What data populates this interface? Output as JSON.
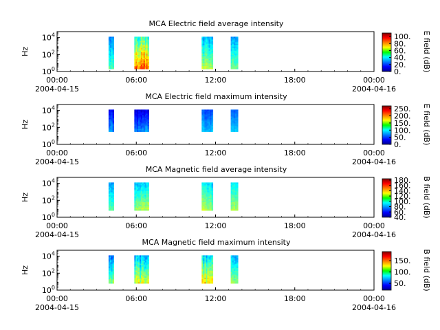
{
  "chart_data": [
    {
      "type": "heatmap",
      "title": "MCA  Electric field average intensity",
      "ylabel": "Hz",
      "y_tick_labels": [
        {
          "base": "10",
          "exp": "0"
        },
        {
          "base": "10",
          "exp": "2"
        },
        {
          "base": "10",
          "exp": "4"
        }
      ],
      "y_scale": "log",
      "ylim_exp": [
        0,
        4.7
      ],
      "x_tick_labels": [
        "00:00",
        "06:00",
        "12:00",
        "18:00",
        "00:00"
      ],
      "x_date_labels": [
        "2004-04-15",
        "2004-04-16"
      ],
      "xlim_hours": [
        0,
        24
      ],
      "colorbar": {
        "label": "E field (dB)",
        "range": [
          0,
          110
        ],
        "ticks": [
          {
            "v": 0,
            "label": "0."
          },
          {
            "v": 20,
            "label": "20."
          },
          {
            "v": 40,
            "label": "40."
          },
          {
            "v": 60,
            "label": "60."
          },
          {
            "v": 80,
            "label": "80."
          },
          {
            "v": 100,
            "label": "100."
          }
        ]
      },
      "bursts": [
        {
          "start_hours": 3.9,
          "end_hours": 4.3,
          "freq_exp": [
            0.3,
            4.1
          ],
          "intensity_db": [
            20,
            60
          ]
        },
        {
          "start_hours": 5.85,
          "end_hours": 6.95,
          "freq_exp": [
            0.3,
            4.1
          ],
          "intensity_db": [
            30,
            100
          ]
        },
        {
          "start_hours": 10.95,
          "end_hours": 11.8,
          "freq_exp": [
            0.3,
            4.1
          ],
          "intensity_db": [
            20,
            70
          ]
        },
        {
          "start_hours": 13.15,
          "end_hours": 13.7,
          "freq_exp": [
            0.3,
            4.1
          ],
          "intensity_db": [
            20,
            60
          ]
        }
      ]
    },
    {
      "type": "heatmap",
      "title": "MCA  Electric field maximum intensity",
      "ylabel": "Hz",
      "y_tick_labels": [
        {
          "base": "10",
          "exp": "0"
        },
        {
          "base": "10",
          "exp": "2"
        },
        {
          "base": "10",
          "exp": "4"
        }
      ],
      "y_scale": "log",
      "ylim_exp": [
        0,
        4.7
      ],
      "x_tick_labels": [
        "00:00",
        "06:00",
        "12:00",
        "18:00",
        "00:00"
      ],
      "x_date_labels": [
        "2004-04-15",
        "2004-04-16"
      ],
      "xlim_hours": [
        0,
        24
      ],
      "colorbar": {
        "label": "E field (dB)",
        "range": [
          0,
          270
        ],
        "ticks": [
          {
            "v": 0,
            "label": "0."
          },
          {
            "v": 50,
            "label": "50."
          },
          {
            "v": 100,
            "label": "100."
          },
          {
            "v": 150,
            "label": "150."
          },
          {
            "v": 200,
            "label": "200."
          },
          {
            "v": 250,
            "label": "250."
          }
        ]
      },
      "bursts": [
        {
          "start_hours": 3.9,
          "end_hours": 4.3,
          "freq_exp": [
            1.5,
            4.1
          ],
          "intensity_db": [
            10,
            90
          ]
        },
        {
          "start_hours": 5.85,
          "end_hours": 6.95,
          "freq_exp": [
            1.5,
            4.1
          ],
          "intensity_db": [
            10,
            90
          ]
        },
        {
          "start_hours": 10.95,
          "end_hours": 11.8,
          "freq_exp": [
            1.5,
            4.1
          ],
          "intensity_db": [
            40,
            100
          ]
        },
        {
          "start_hours": 13.15,
          "end_hours": 13.7,
          "freq_exp": [
            1.5,
            4.1
          ],
          "intensity_db": [
            50,
            100
          ]
        }
      ]
    },
    {
      "type": "heatmap",
      "title": "MCA  Magnetic field average intensity",
      "ylabel": "Hz",
      "y_tick_labels": [
        {
          "base": "10",
          "exp": "0"
        },
        {
          "base": "10",
          "exp": "2"
        },
        {
          "base": "10",
          "exp": "4"
        }
      ],
      "y_scale": "log",
      "ylim_exp": [
        0,
        4.7
      ],
      "x_tick_labels": [
        "00:00",
        "06:00",
        "12:00",
        "18:00",
        "00:00"
      ],
      "x_date_labels": [
        "2004-04-15",
        "2004-04-16"
      ],
      "xlim_hours": [
        0,
        24
      ],
      "colorbar": {
        "label": "B field (dB)",
        "range": [
          40,
          185
        ],
        "ticks": [
          {
            "v": 40,
            "label": "40."
          },
          {
            "v": 60,
            "label": "60."
          },
          {
            "v": 80,
            "label": "80."
          },
          {
            "v": 100,
            "label": "100."
          },
          {
            "v": 120,
            "label": "120."
          },
          {
            "v": 140,
            "label": "140."
          },
          {
            "v": 160,
            "label": "160."
          },
          {
            "v": 180,
            "label": "180."
          }
        ]
      },
      "bursts": [
        {
          "start_hours": 3.9,
          "end_hours": 4.3,
          "freq_exp": [
            0.8,
            4.1
          ],
          "intensity_db": [
            70,
            120
          ]
        },
        {
          "start_hours": 5.85,
          "end_hours": 6.95,
          "freq_exp": [
            0.8,
            4.1
          ],
          "intensity_db": [
            70,
            130
          ]
        },
        {
          "start_hours": 10.95,
          "end_hours": 11.8,
          "freq_exp": [
            0.8,
            4.1
          ],
          "intensity_db": [
            80,
            130
          ]
        },
        {
          "start_hours": 13.15,
          "end_hours": 13.7,
          "freq_exp": [
            0.8,
            4.1
          ],
          "intensity_db": [
            80,
            125
          ]
        }
      ]
    },
    {
      "type": "heatmap",
      "title": "MCA  Magnetic field maximum intensity",
      "ylabel": "Hz",
      "y_tick_labels": [
        {
          "base": "10",
          "exp": "0"
        },
        {
          "base": "10",
          "exp": "2"
        },
        {
          "base": "10",
          "exp": "4"
        }
      ],
      "y_scale": "log",
      "ylim_exp": [
        0,
        4.7
      ],
      "x_tick_labels": [
        "00:00",
        "06:00",
        "12:00",
        "18:00",
        "00:00"
      ],
      "x_date_labels": [
        "2004-04-15",
        "2004-04-16"
      ],
      "xlim_hours": [
        0,
        24
      ],
      "colorbar": {
        "label": "B field (dB)",
        "range": [
          20,
          190
        ],
        "ticks": [
          {
            "v": 50,
            "label": "50."
          },
          {
            "v": 100,
            "label": "100."
          },
          {
            "v": 150,
            "label": "150."
          }
        ]
      },
      "bursts": [
        {
          "start_hours": 3.9,
          "end_hours": 4.3,
          "freq_exp": [
            0.8,
            4.1
          ],
          "intensity_db": [
            40,
            120
          ]
        },
        {
          "start_hours": 5.85,
          "end_hours": 6.95,
          "freq_exp": [
            0.8,
            4.1
          ],
          "intensity_db": [
            50,
            140
          ]
        },
        {
          "start_hours": 10.95,
          "end_hours": 11.8,
          "freq_exp": [
            0.8,
            4.1
          ],
          "intensity_db": [
            60,
            150
          ]
        },
        {
          "start_hours": 13.15,
          "end_hours": 13.7,
          "freq_exp": [
            0.8,
            4.1
          ],
          "intensity_db": [
            60,
            130
          ]
        }
      ]
    }
  ]
}
